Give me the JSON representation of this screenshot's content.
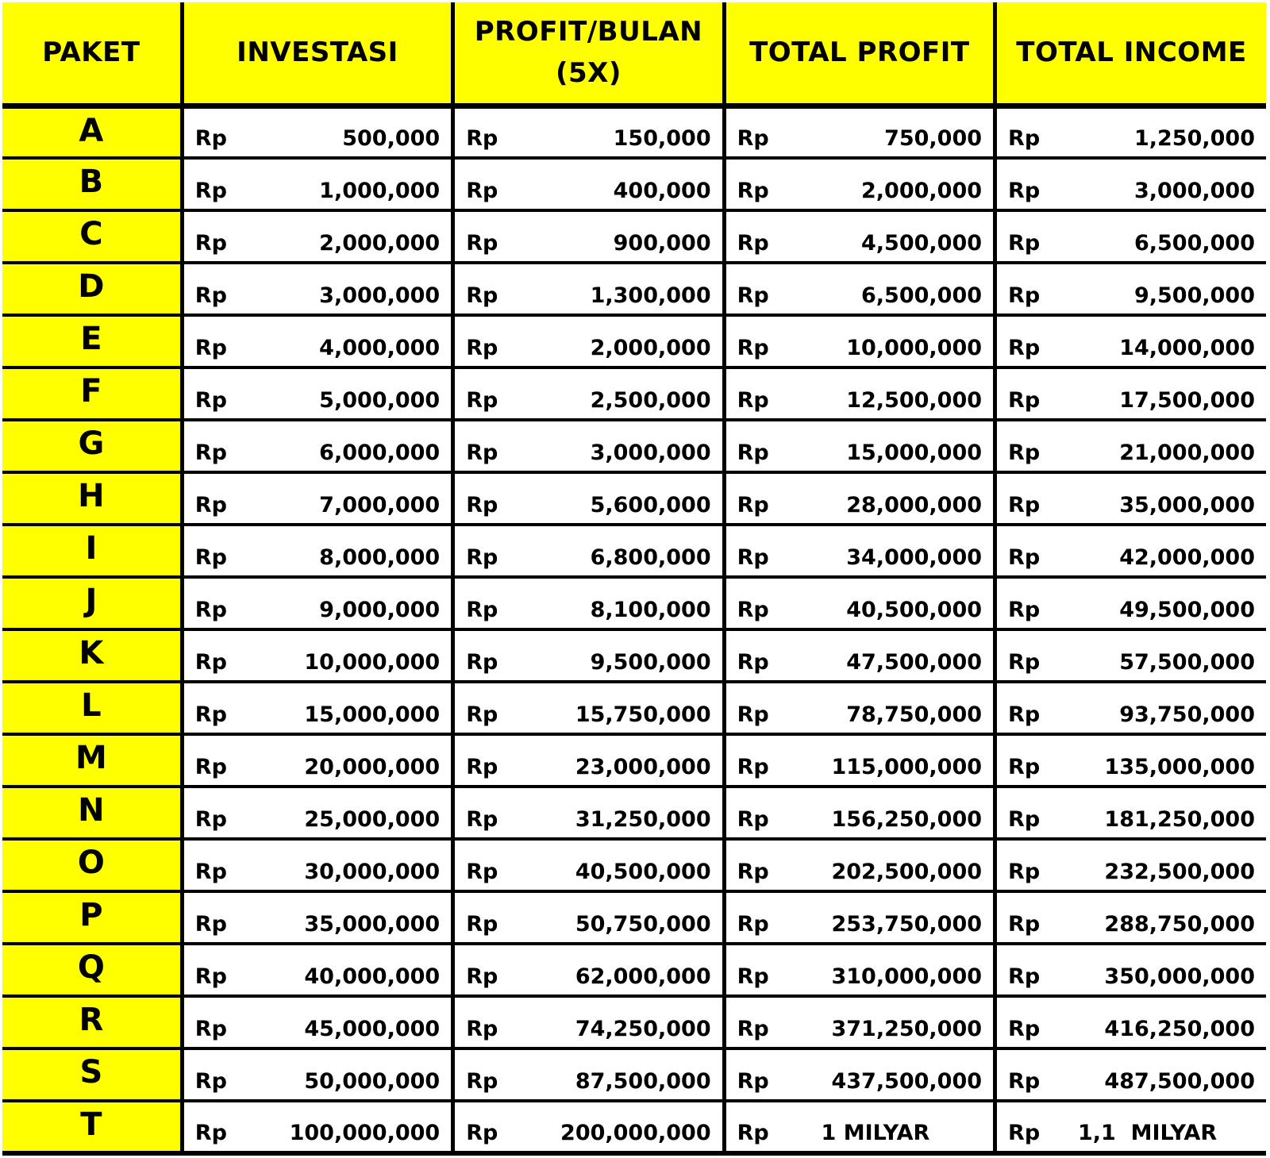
{
  "headers": {
    "paket": "PAKET",
    "investasi": "INVESTASI",
    "profit_bulan_line1": "PROFIT/BULAN",
    "profit_bulan_line2": "(5X)",
    "total_profit": "TOTAL PROFIT",
    "total_income": "TOTAL INCOME"
  },
  "currency": "Rp",
  "colors": {
    "header_fill": "#ffff00",
    "paket_fill": "#ffff00",
    "border": "#000000",
    "cell_fill": "#ffffff"
  },
  "rows": [
    {
      "paket": "A",
      "investasi": "500,000",
      "profit_bulan": "150,000",
      "total_profit": "750,000",
      "total_income": "1,250,000"
    },
    {
      "paket": "B",
      "investasi": "1,000,000",
      "profit_bulan": "400,000",
      "total_profit": "2,000,000",
      "total_income": "3,000,000"
    },
    {
      "paket": "C",
      "investasi": "2,000,000",
      "profit_bulan": "900,000",
      "total_profit": "4,500,000",
      "total_income": "6,500,000"
    },
    {
      "paket": "D",
      "investasi": "3,000,000",
      "profit_bulan": "1,300,000",
      "total_profit": "6,500,000",
      "total_income": "9,500,000"
    },
    {
      "paket": "E",
      "investasi": "4,000,000",
      "profit_bulan": "2,000,000",
      "total_profit": "10,000,000",
      "total_income": "14,000,000"
    },
    {
      "paket": "F",
      "investasi": "5,000,000",
      "profit_bulan": "2,500,000",
      "total_profit": "12,500,000",
      "total_income": "17,500,000"
    },
    {
      "paket": "G",
      "investasi": "6,000,000",
      "profit_bulan": "3,000,000",
      "total_profit": "15,000,000",
      "total_income": "21,000,000"
    },
    {
      "paket": "H",
      "investasi": "7,000,000",
      "profit_bulan": "5,600,000",
      "total_profit": "28,000,000",
      "total_income": "35,000,000"
    },
    {
      "paket": "I",
      "investasi": "8,000,000",
      "profit_bulan": "6,800,000",
      "total_profit": "34,000,000",
      "total_income": "42,000,000"
    },
    {
      "paket": "J",
      "investasi": "9,000,000",
      "profit_bulan": "8,100,000",
      "total_profit": "40,500,000",
      "total_income": "49,500,000"
    },
    {
      "paket": "K",
      "investasi": "10,000,000",
      "profit_bulan": "9,500,000",
      "total_profit": "47,500,000",
      "total_income": "57,500,000"
    },
    {
      "paket": "L",
      "investasi": "15,000,000",
      "profit_bulan": "15,750,000",
      "total_profit": "78,750,000",
      "total_income": "93,750,000"
    },
    {
      "paket": "M",
      "investasi": "20,000,000",
      "profit_bulan": "23,000,000",
      "total_profit": "115,000,000",
      "total_income": "135,000,000"
    },
    {
      "paket": "N",
      "investasi": "25,000,000",
      "profit_bulan": "31,250,000",
      "total_profit": "156,250,000",
      "total_income": "181,250,000"
    },
    {
      "paket": "O",
      "investasi": "30,000,000",
      "profit_bulan": "40,500,000",
      "total_profit": "202,500,000",
      "total_income": "232,500,000"
    },
    {
      "paket": "P",
      "investasi": "35,000,000",
      "profit_bulan": "50,750,000",
      "total_profit": "253,750,000",
      "total_income": "288,750,000"
    },
    {
      "paket": "Q",
      "investasi": "40,000,000",
      "profit_bulan": "62,000,000",
      "total_profit": "310,000,000",
      "total_income": "350,000,000"
    },
    {
      "paket": "R",
      "investasi": "45,000,000",
      "profit_bulan": "74,250,000",
      "total_profit": "371,250,000",
      "total_income": "416,250,000"
    },
    {
      "paket": "S",
      "investasi": "50,000,000",
      "profit_bulan": "87,500,000",
      "total_profit": "437,500,000",
      "total_income": "487,500,000"
    },
    {
      "paket": "T",
      "investasi": "100,000,000",
      "profit_bulan": "200,000,000",
      "total_profit": "1 MILYAR",
      "total_income": "1,1  MILYAR"
    }
  ]
}
